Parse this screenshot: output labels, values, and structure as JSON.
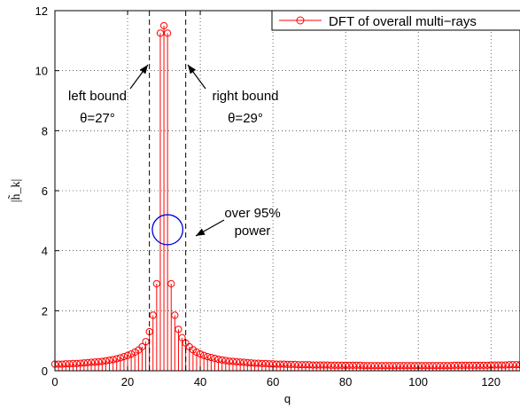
{
  "chart_data": {
    "type": "stem",
    "xlabel": "q",
    "ylabel": "|h̃_k|",
    "xlim": [
      0,
      128
    ],
    "ylim": [
      0,
      12
    ],
    "xticks": [
      0,
      20,
      40,
      60,
      80,
      100,
      120
    ],
    "yticks": [
      0,
      2,
      4,
      6,
      8,
      10,
      12
    ],
    "grid": true,
    "legend": {
      "placement": "top-right",
      "entries": [
        "DFT of overall multi−rays"
      ]
    },
    "series": [
      {
        "name": "DFT of overall multi−rays",
        "color": "#ff0000",
        "marker": "circle",
        "x": [
          0,
          1,
          2,
          3,
          4,
          5,
          6,
          7,
          8,
          9,
          10,
          11,
          12,
          13,
          14,
          15,
          16,
          17,
          18,
          19,
          20,
          21,
          22,
          23,
          24,
          25,
          26,
          27,
          28,
          29,
          30,
          31,
          32,
          33,
          34,
          35,
          36,
          37,
          38,
          39,
          40,
          41,
          42,
          43,
          44,
          45,
          46,
          47,
          48,
          49,
          50,
          51,
          52,
          53,
          54,
          55,
          56,
          57,
          58,
          59,
          60,
          61,
          62,
          63,
          64,
          65,
          66,
          67,
          68,
          69,
          70,
          71,
          72,
          73,
          74,
          75,
          76,
          77,
          78,
          79,
          80,
          81,
          82,
          83,
          84,
          85,
          86,
          87,
          88,
          89,
          90,
          91,
          92,
          93,
          94,
          95,
          96,
          97,
          98,
          99,
          100,
          101,
          102,
          103,
          104,
          105,
          106,
          107,
          108,
          109,
          110,
          111,
          112,
          113,
          114,
          115,
          116,
          117,
          118,
          119,
          120,
          121,
          122,
          123,
          124,
          125,
          126,
          127,
          128
        ],
        "y": [
          0.22,
          0.22,
          0.22,
          0.23,
          0.23,
          0.24,
          0.24,
          0.25,
          0.26,
          0.27,
          0.28,
          0.29,
          0.3,
          0.31,
          0.33,
          0.35,
          0.37,
          0.4,
          0.43,
          0.47,
          0.51,
          0.56,
          0.62,
          0.69,
          0.8,
          0.97,
          1.3,
          1.85,
          2.9,
          11.25,
          11.5,
          11.25,
          2.9,
          1.85,
          1.38,
          1.1,
          0.92,
          0.8,
          0.7,
          0.62,
          0.56,
          0.51,
          0.47,
          0.44,
          0.41,
          0.38,
          0.36,
          0.34,
          0.32,
          0.31,
          0.3,
          0.29,
          0.28,
          0.27,
          0.26,
          0.25,
          0.25,
          0.24,
          0.24,
          0.23,
          0.23,
          0.22,
          0.22,
          0.22,
          0.21,
          0.21,
          0.21,
          0.2,
          0.2,
          0.2,
          0.2,
          0.19,
          0.19,
          0.19,
          0.19,
          0.19,
          0.18,
          0.18,
          0.18,
          0.18,
          0.18,
          0.18,
          0.18,
          0.18,
          0.18,
          0.17,
          0.17,
          0.17,
          0.17,
          0.17,
          0.17,
          0.17,
          0.17,
          0.17,
          0.17,
          0.17,
          0.17,
          0.17,
          0.17,
          0.17,
          0.17,
          0.17,
          0.17,
          0.17,
          0.17,
          0.17,
          0.17,
          0.17,
          0.17,
          0.17,
          0.18,
          0.18,
          0.18,
          0.18,
          0.18,
          0.18,
          0.18,
          0.18,
          0.18,
          0.18,
          0.19,
          0.19,
          0.19,
          0.19,
          0.19,
          0.2,
          0.2,
          0.2,
          0.2
        ]
      }
    ],
    "bounds": [
      {
        "x": 26,
        "label_line1": "left bound",
        "label_line2": "θ=27°"
      },
      {
        "x": 36,
        "label_line1": "right bound",
        "label_line2": "θ=29°"
      }
    ],
    "ellipse": {
      "cx": 31,
      "cy": 4.7,
      "rx": 4.2,
      "ry": 0.5,
      "color": "#0000dd"
    },
    "power_annotation": {
      "line1": "over 95%",
      "line2": "power"
    }
  }
}
